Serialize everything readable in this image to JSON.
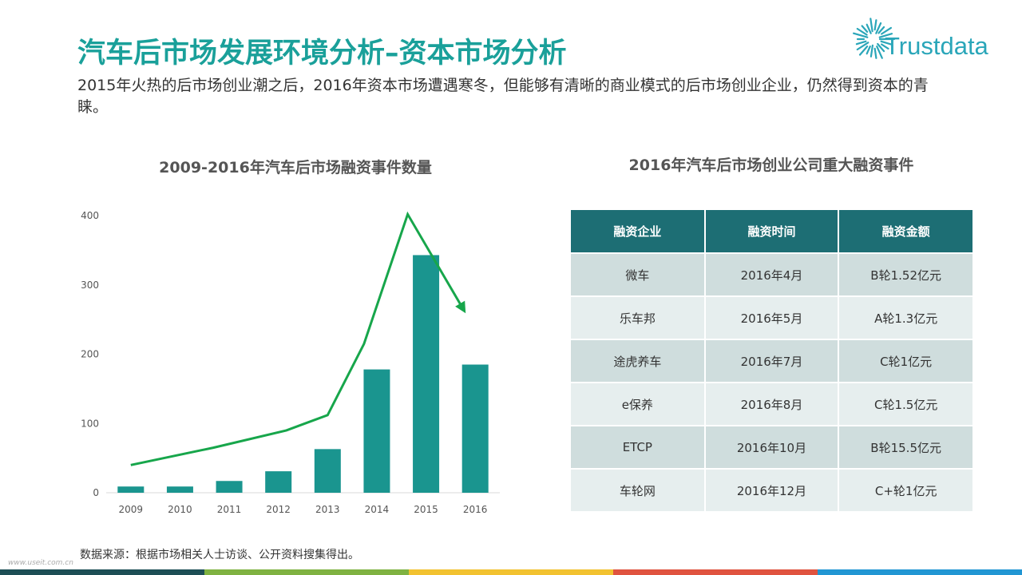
{
  "header": {
    "title": "汽车后市场发展环境分析–资本市场分析",
    "subtitle": "2015年火热的后市场创业潮之后，2016年资本市场遭遇寒冬，但能够有清晰的商业模式的后市场创业企业，仍然得到资本的青睐。"
  },
  "logo": {
    "text": "Trustdata",
    "color": "#2aa6b9"
  },
  "chart_data": {
    "type": "bar",
    "title": "2009-2016年汽车后市场融资事件数量",
    "categories": [
      "2009",
      "2010",
      "2011",
      "2012",
      "2013",
      "2014",
      "2015",
      "2016"
    ],
    "values": [
      9,
      9,
      17,
      31,
      63,
      178,
      343,
      185
    ],
    "trend_line": [
      40,
      65,
      90,
      112,
      215,
      402,
      265
    ],
    "ylim": [
      0,
      400
    ],
    "yticks": [
      "400",
      "300",
      "200",
      "100",
      "0"
    ],
    "bar_color": "#1a958f",
    "trend_color": "#17a64b",
    "grid": false,
    "xlabel": "",
    "ylabel": ""
  },
  "table": {
    "title": "2016年汽车后市场创业公司重大融资事件",
    "headers": [
      "融资企业",
      "融资时间",
      "融资金额"
    ],
    "rows": [
      [
        "微车",
        "2016年4月",
        "B轮1.52亿元"
      ],
      [
        "乐车邦",
        "2016年5月",
        "A轮1.3亿元"
      ],
      [
        "途虎养车",
        "2016年7月",
        "C轮1亿元"
      ],
      [
        "e保养",
        "2016年8月",
        "C轮1.5亿元"
      ],
      [
        "ETCP",
        "2016年10月",
        "B轮15.5亿元"
      ],
      [
        "车轮网",
        "2016年12月",
        "C+轮1亿元"
      ]
    ],
    "header_color": "#1d6e74"
  },
  "source": "数据来源：根据市场相关人士访谈、公开资料搜集得出。",
  "watermark": "www.useit.com.cn",
  "footer_colors": [
    "#1d4e55",
    "#7fb241",
    "#f2c230",
    "#e0533f",
    "#2196d3"
  ]
}
